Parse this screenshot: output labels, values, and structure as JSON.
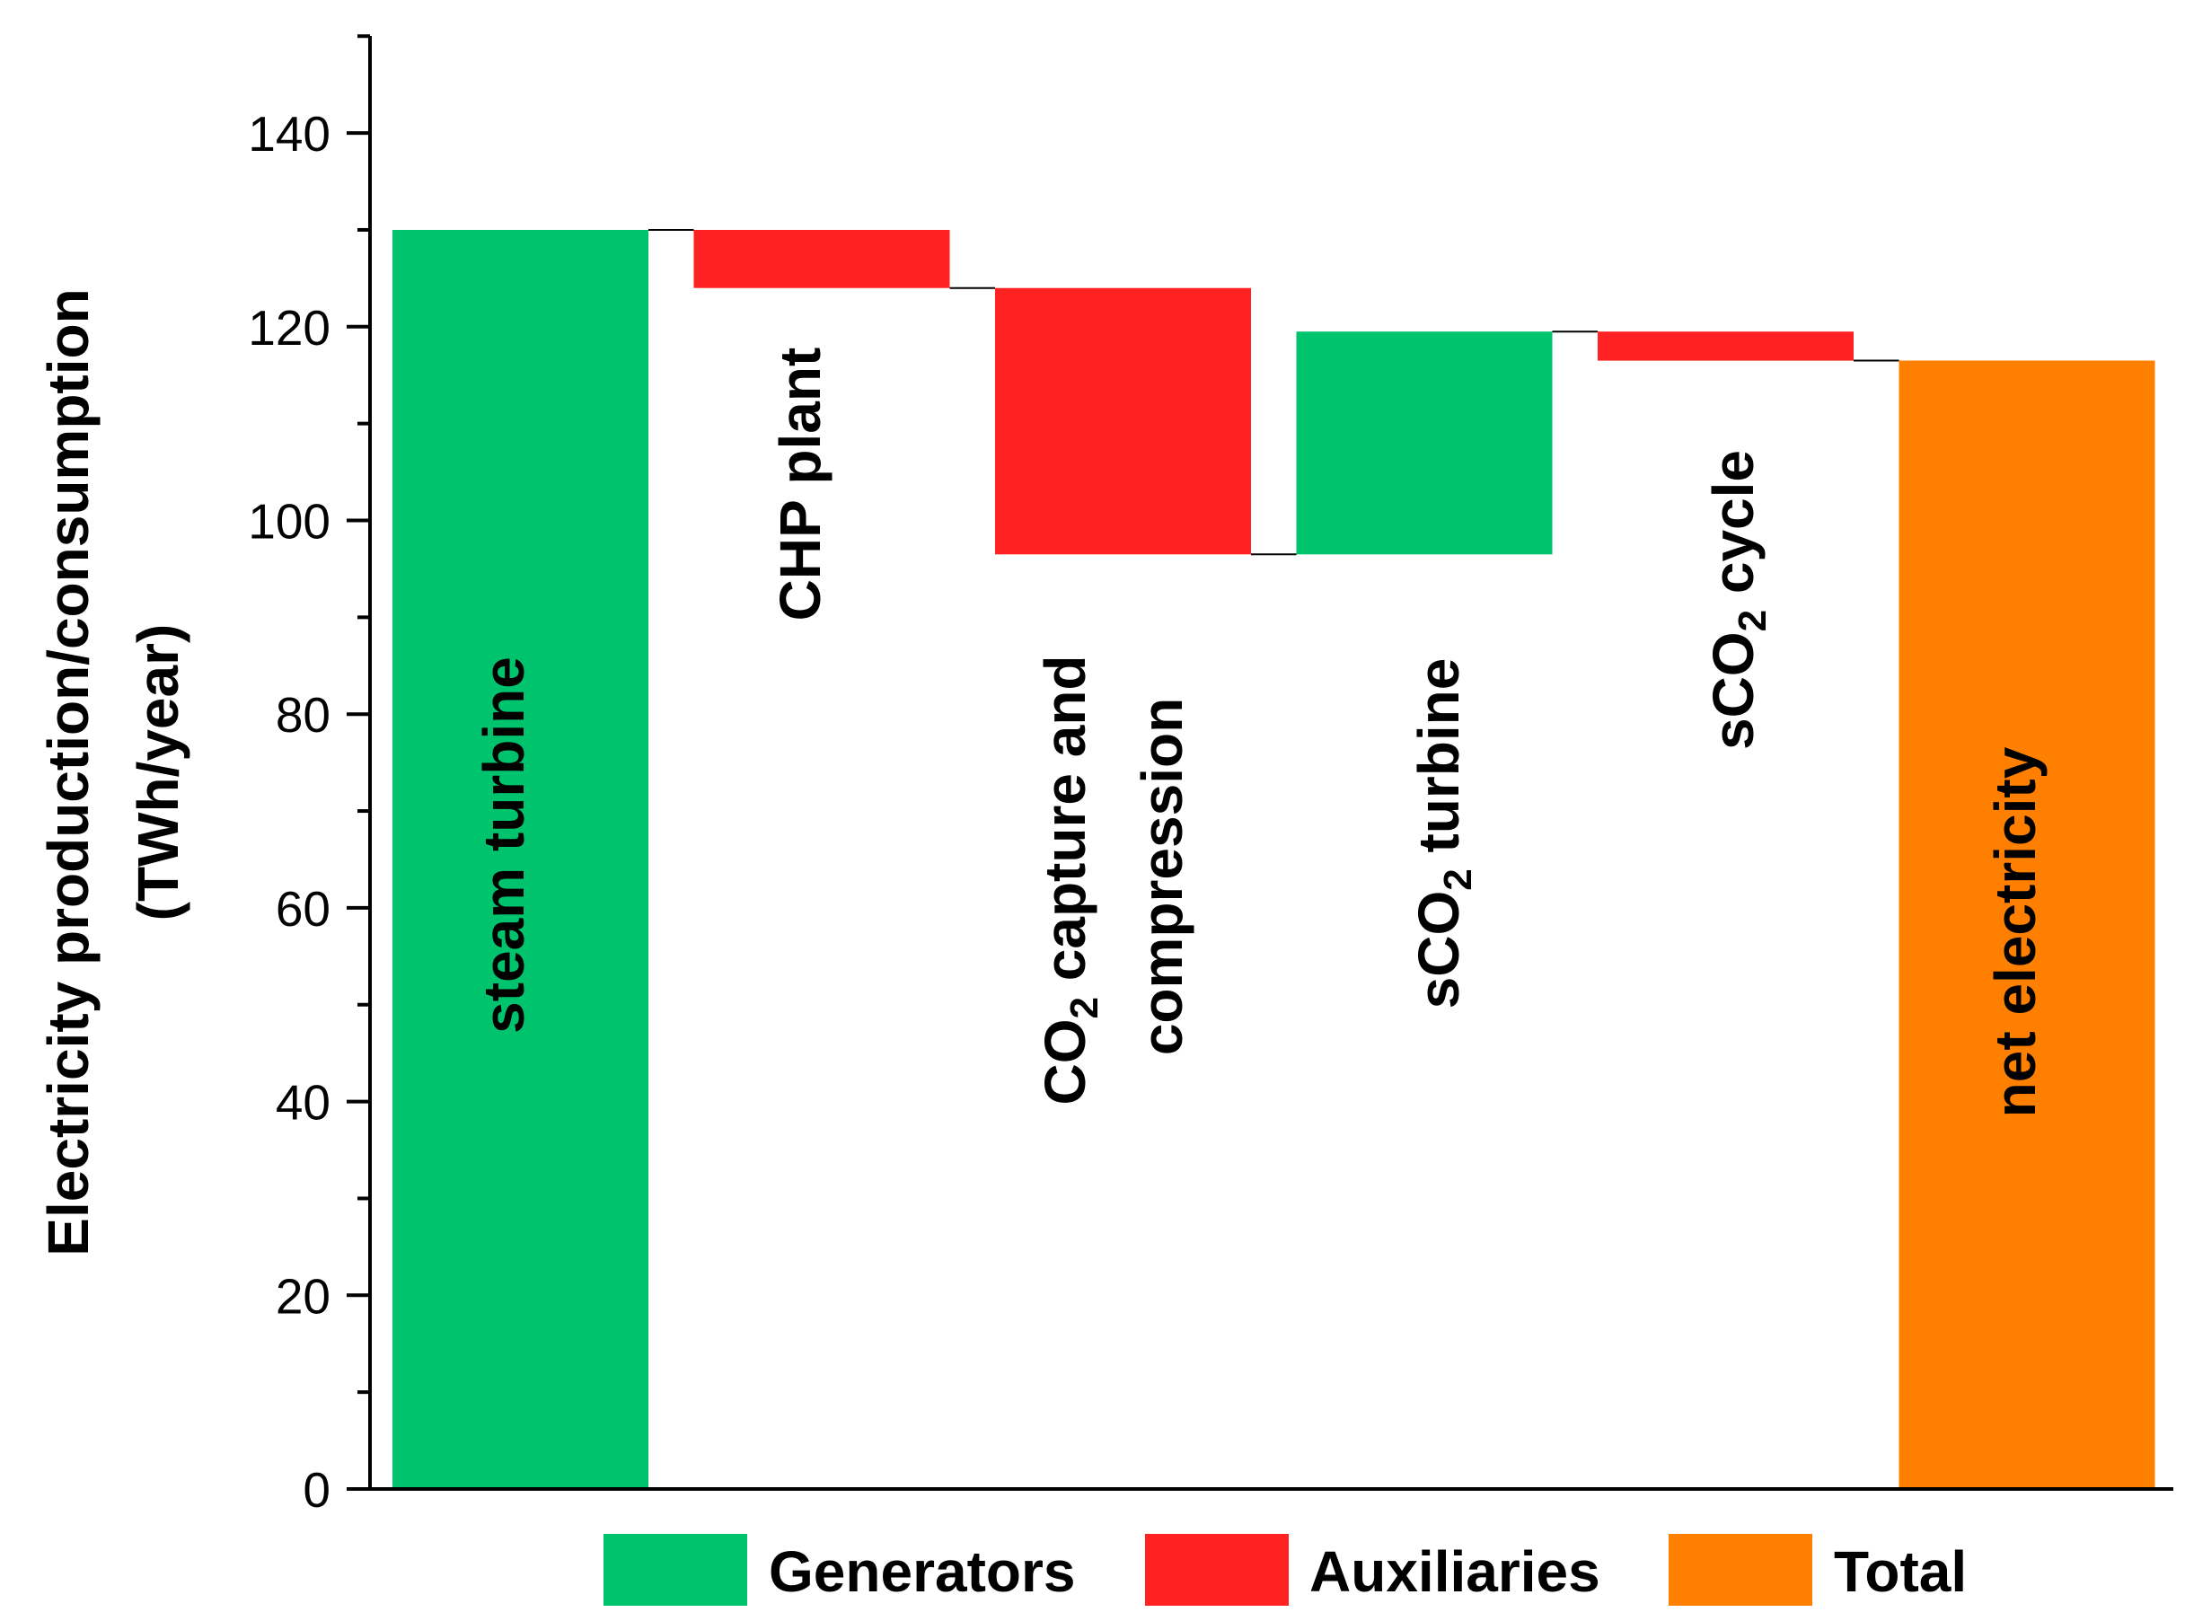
{
  "chart_data": {
    "type": "waterfall",
    "ylabel_line1": "Electricity production/consumption",
    "ylabel_line2": "(TWh/year)",
    "ylim": [
      0,
      150
    ],
    "yticks": [
      "0",
      "20",
      "40",
      "60",
      "80",
      "100",
      "120",
      "140"
    ],
    "ytick_values": [
      0,
      20,
      40,
      60,
      80,
      100,
      120,
      140
    ],
    "categories": [
      "steam turbine",
      "CHP plant",
      "CO2 capture and compression",
      "sCO2 turbine",
      "sCO2 cycle",
      "net electricity"
    ],
    "steps": [
      {
        "label": "steam turbine",
        "start": 0,
        "end": 130,
        "group": "Generators"
      },
      {
        "label": "CHP plant",
        "start": 130,
        "end": 124,
        "group": "Auxiliaries"
      },
      {
        "label": "CO2 capture and compression",
        "start": 124,
        "end": 96.5,
        "group": "Auxiliaries"
      },
      {
        "label": "sCO2 turbine",
        "start": 96.5,
        "end": 119.5,
        "group": "Generators"
      },
      {
        "label": "sCO2 cycle",
        "start": 119.5,
        "end": 116.5,
        "group": "Auxiliaries"
      },
      {
        "label": "net electricity",
        "start": 0,
        "end": 116.5,
        "group": "Total"
      }
    ],
    "legend": [
      {
        "name": "Generators",
        "color": "#00c36e"
      },
      {
        "name": "Auxiliaries",
        "color": "#ff2222"
      },
      {
        "name": "Total",
        "color": "#ff8000"
      }
    ],
    "legend_position": "bottom",
    "grid": false
  }
}
